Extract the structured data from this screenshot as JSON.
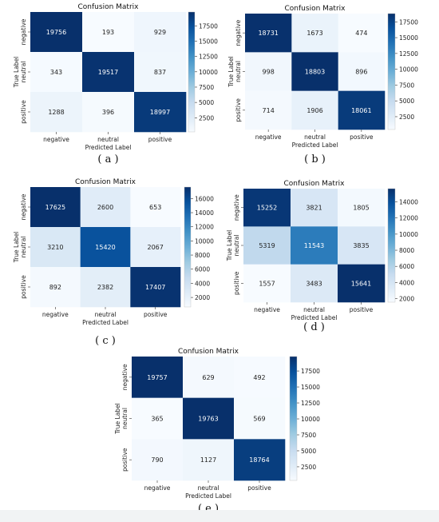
{
  "chart_data": [
    {
      "type": "heatmap",
      "caption": "( a )",
      "title": "Confusion Matrix",
      "xlabel": "Predicted Label",
      "ylabel": "True Label",
      "x_tick_labels": [
        "negative",
        "neutral",
        "positive"
      ],
      "y_tick_labels": [
        "negative",
        "neutral",
        "positive"
      ],
      "values": [
        [
          19756,
          193,
          929
        ],
        [
          343,
          19517,
          837
        ],
        [
          1288,
          396,
          18997
        ]
      ],
      "colormap": "Blues",
      "color_range": [
        193,
        19756
      ],
      "colorbar_ticks": [
        2500,
        5000,
        7500,
        10000,
        12500,
        15000,
        17500
      ]
    },
    {
      "type": "heatmap",
      "caption": "( b )",
      "title": "Confusion Matrix",
      "xlabel": "Predicted Label",
      "ylabel": "True Label",
      "x_tick_labels": [
        "negative",
        "neutral",
        "positive"
      ],
      "y_tick_labels": [
        "negative",
        "neutral",
        "positive"
      ],
      "values": [
        [
          18731,
          1673,
          474
        ],
        [
          998,
          18803,
          896
        ],
        [
          714,
          1906,
          18061
        ]
      ],
      "colormap": "Blues",
      "color_range": [
        474,
        18803
      ],
      "colorbar_ticks": [
        2500,
        5000,
        7500,
        10000,
        12500,
        15000,
        17500
      ]
    },
    {
      "type": "heatmap",
      "caption": "( c )",
      "title": "Confusion Matrix",
      "xlabel": "Predicted Label",
      "ylabel": "True Label",
      "x_tick_labels": [
        "negative",
        "neutral",
        "positive"
      ],
      "y_tick_labels": [
        "negative",
        "neutral",
        "positive"
      ],
      "values": [
        [
          17625,
          2600,
          653
        ],
        [
          3210,
          15420,
          2067
        ],
        [
          892,
          2382,
          17407
        ]
      ],
      "colormap": "Blues",
      "color_range": [
        653,
        17625
      ],
      "colorbar_ticks": [
        2000,
        4000,
        6000,
        8000,
        10000,
        12000,
        14000,
        16000
      ]
    },
    {
      "type": "heatmap",
      "caption": "( d )",
      "title": "Confusion Matrix",
      "xlabel": "Predicted Label",
      "ylabel": "True Label",
      "x_tick_labels": [
        "negative",
        "neutral",
        "positive"
      ],
      "y_tick_labels": [
        "negative",
        "neutral",
        "positive"
      ],
      "values": [
        [
          15252,
          3821,
          1805
        ],
        [
          5319,
          11543,
          3835
        ],
        [
          1557,
          3483,
          15641
        ]
      ],
      "colormap": "Blues",
      "color_range": [
        1557,
        15641
      ],
      "colorbar_ticks": [
        2000,
        4000,
        6000,
        8000,
        10000,
        12000,
        14000
      ]
    },
    {
      "type": "heatmap",
      "caption": "( e )",
      "title": "Confusion Matrix",
      "xlabel": "Predicted Label",
      "ylabel": "True Label",
      "x_tick_labels": [
        "negative",
        "neutral",
        "positive"
      ],
      "y_tick_labels": [
        "negative",
        "neutral",
        "positive"
      ],
      "values": [
        [
          19757,
          629,
          492
        ],
        [
          365,
          19763,
          569
        ],
        [
          790,
          1127,
          18764
        ]
      ],
      "colormap": "Blues",
      "color_range": [
        365,
        19763
      ],
      "colorbar_ticks": [
        2500,
        5000,
        7500,
        10000,
        12500,
        15000,
        17500
      ]
    }
  ]
}
